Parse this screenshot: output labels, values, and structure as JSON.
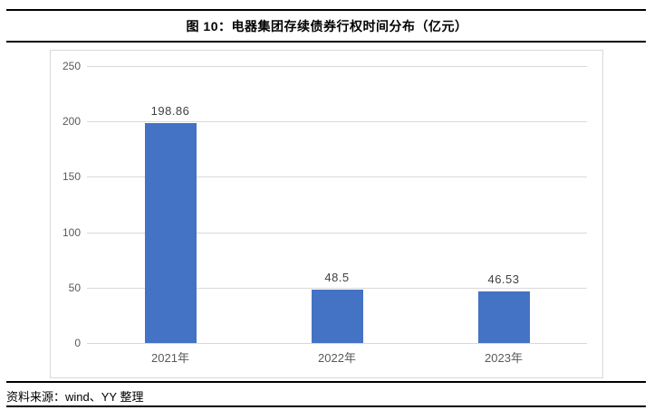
{
  "page": {
    "title": "图 10：电器集团存续债券行权时间分布（亿元）",
    "source": "资料来源：wind、YY 整理"
  },
  "colors": {
    "bar": "#4472C4",
    "grid": "#D9D9D9",
    "chart_border": "#D9D9D9",
    "axis_text": "#595959",
    "value_text": "#404040",
    "rule": "#000000"
  },
  "chart_data": {
    "type": "bar",
    "title": "图 10：电器集团存续债券行权时间分布（亿元）",
    "categories": [
      "2021年",
      "2022年",
      "2023年"
    ],
    "values": [
      198.86,
      48.5,
      46.53
    ],
    "value_labels": [
      "198.86",
      "48.5",
      "46.53"
    ],
    "xlabel": "",
    "ylabel": "",
    "ylim": [
      0,
      250
    ],
    "yticks": [
      0,
      50,
      100,
      150,
      200,
      250
    ],
    "grid": true,
    "legend": false,
    "bar_color": "#4472C4"
  }
}
